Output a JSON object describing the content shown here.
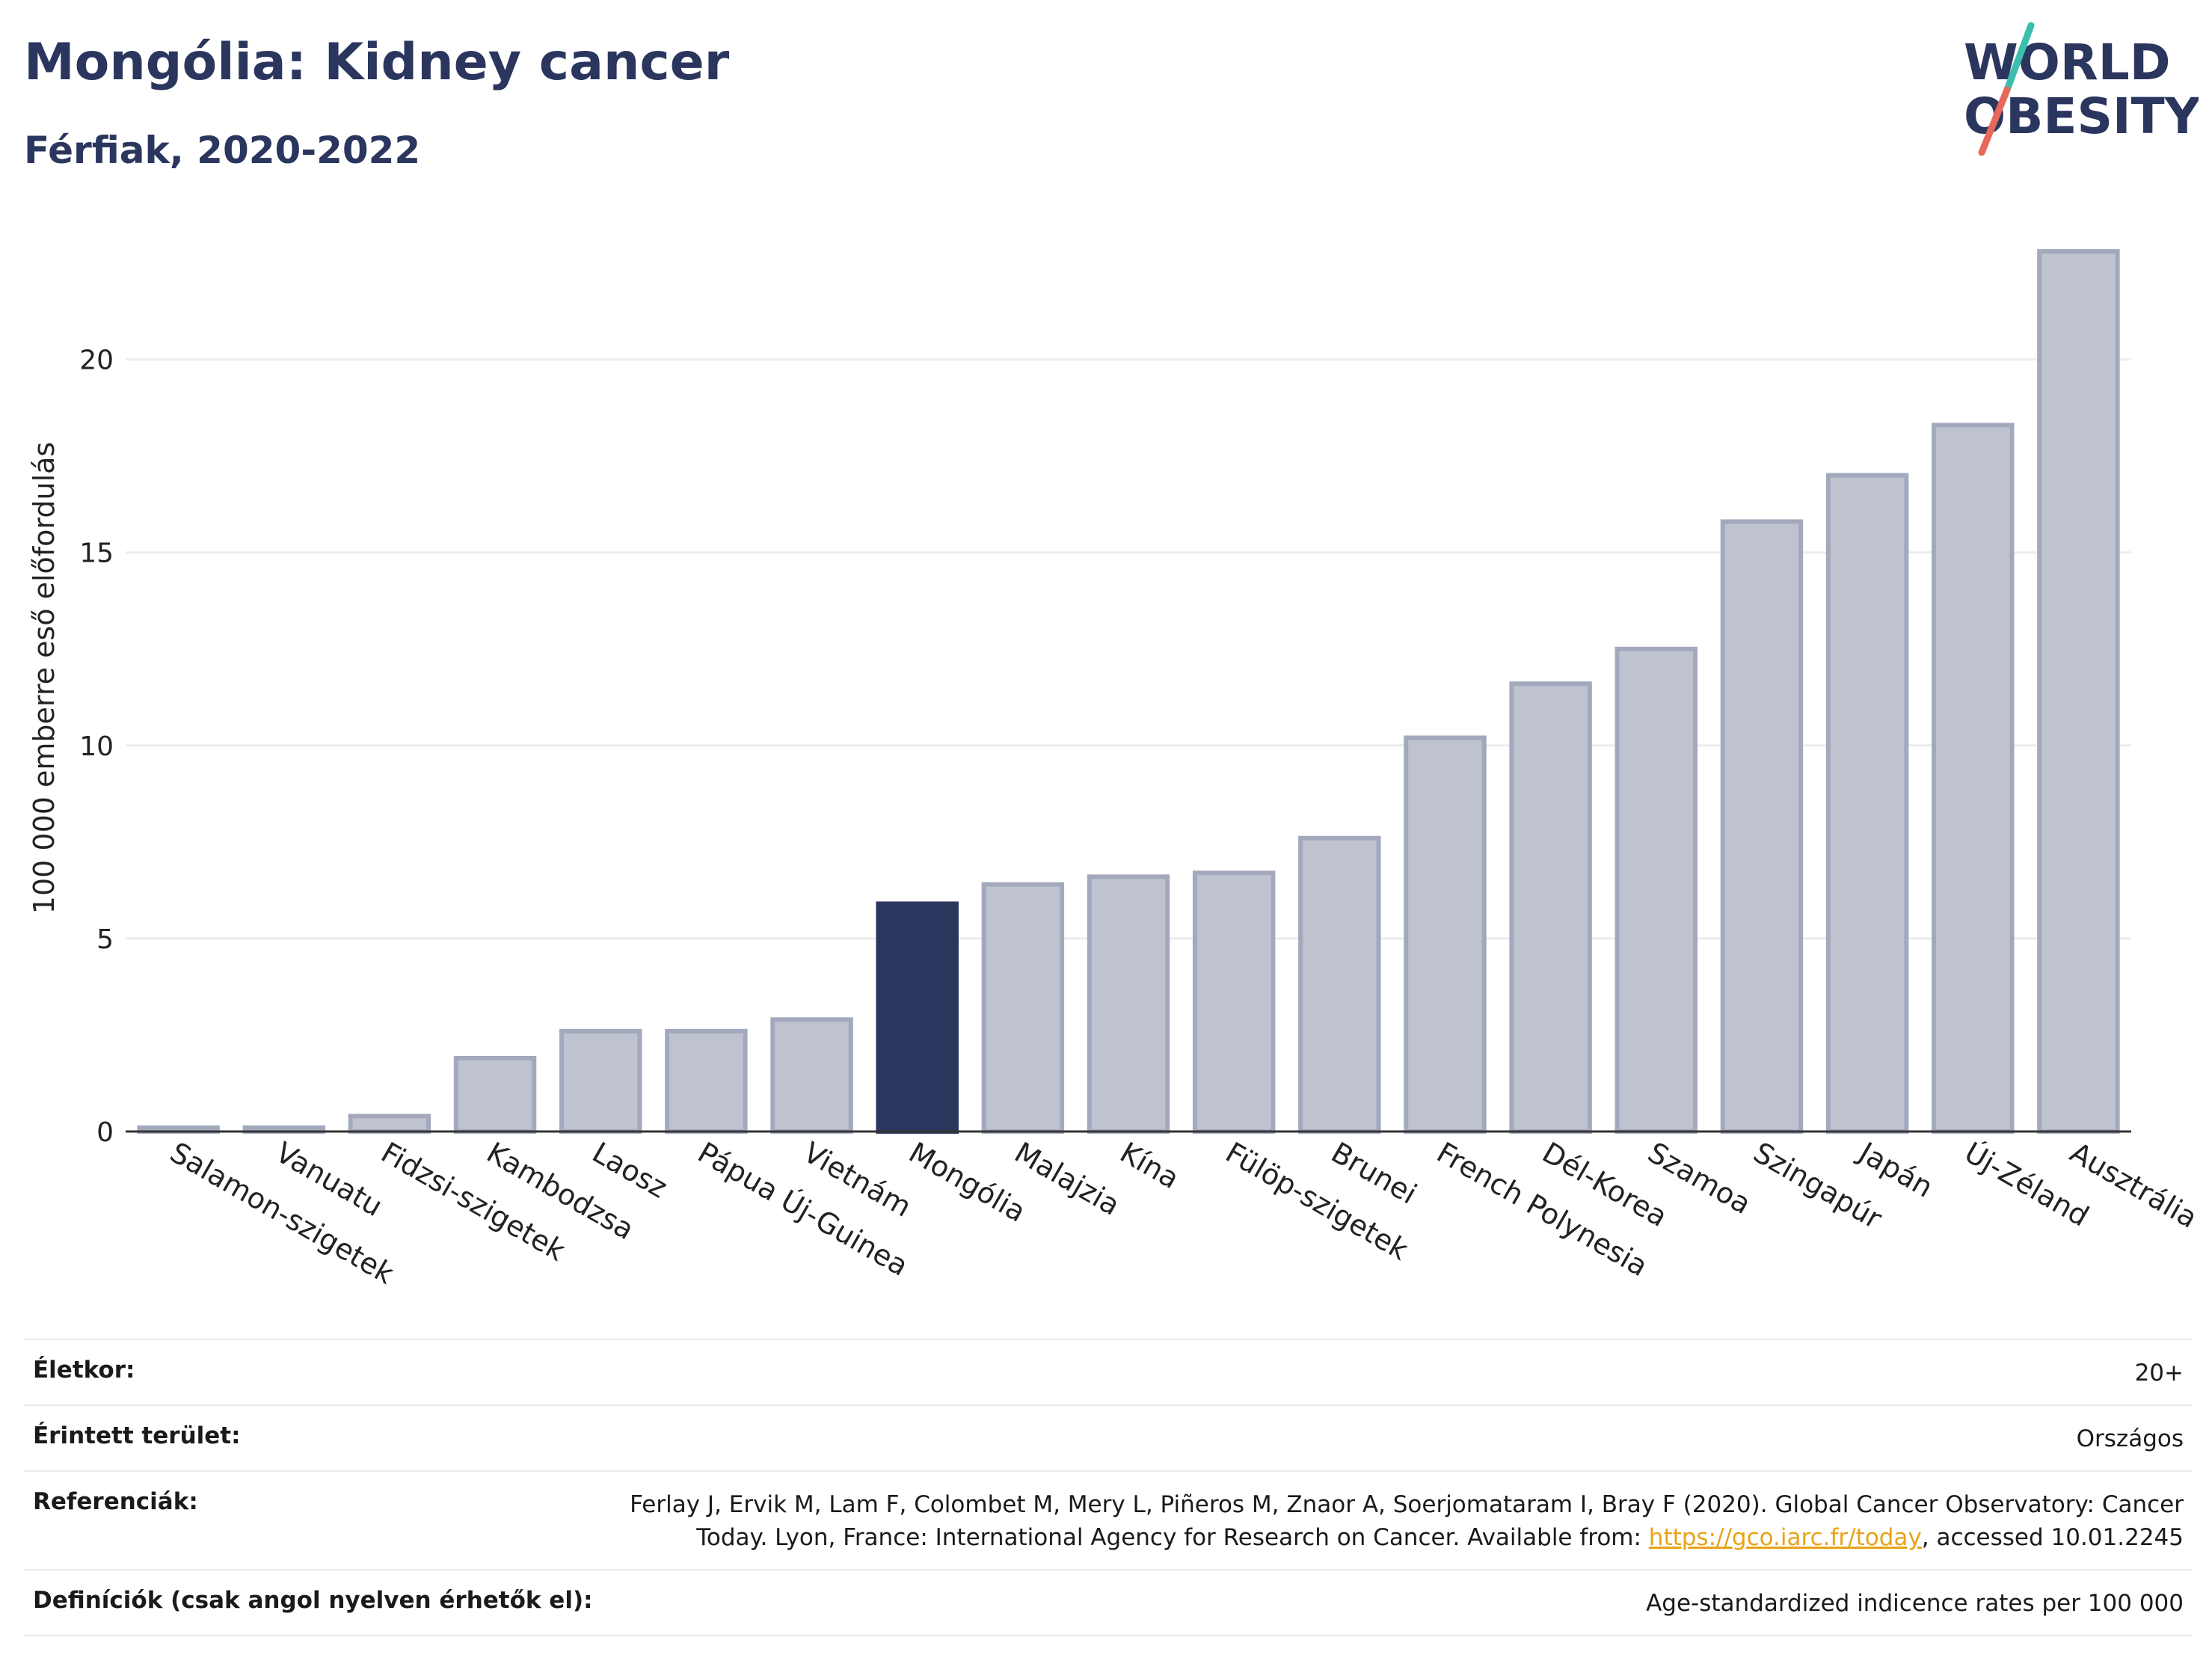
{
  "header": {
    "title": "Mongólia: Kidney cancer",
    "subtitle": "Férfiak, 2020-2022"
  },
  "logo": {
    "line1": "WORLD",
    "line2": "OBESITY",
    "slash_colors": [
      "#3bbfad",
      "#e8685a"
    ],
    "text_color": "#2b365f"
  },
  "colors": {
    "highlight_bar": "#2b365f",
    "default_bar": "#bfc3d0",
    "bar_border": "#a3a9bd",
    "gridline": "#ececf0",
    "axis": "#333333"
  },
  "chart_data": {
    "type": "bar",
    "title": "Mongólia: Kidney cancer",
    "subtitle": "Férfiak, 2020-2022",
    "ylabel": "100 000 emberre eső előfordulás",
    "xlabel": "",
    "ylim": [
      0,
      23.5
    ],
    "yticks": [
      0,
      5,
      10,
      15,
      20
    ],
    "grid": true,
    "highlight": "Mongólia",
    "categories": [
      "Salamon-szigetek",
      "Vanuatu",
      "Fidzsi-szigetek",
      "Kambodzsa",
      "Laosz",
      "Pápua Új-Guinea",
      "Vietnám",
      "Mongólia",
      "Malajzia",
      "Kína",
      "Fülöp-szigetek",
      "Brunei",
      "French Polynesia",
      "Dél-Korea",
      "Szamoa",
      "Szingapúr",
      "Japán",
      "Új-Zéland",
      "Ausztrália"
    ],
    "values": [
      0.1,
      0.1,
      0.4,
      1.9,
      2.6,
      2.6,
      2.9,
      5.9,
      6.4,
      6.6,
      6.7,
      7.6,
      10.2,
      11.6,
      12.5,
      15.8,
      17.0,
      18.3,
      22.8
    ]
  },
  "meta": {
    "age_label": "Életkor:",
    "age_value": "20+",
    "area_label": "Érintett terület:",
    "area_value": "Országos",
    "ref_label": "Referenciák:",
    "ref_line1": "Ferlay J, Ervik M, Lam F, Colombet M, Mery L, Piñeros M, Znaor A, Soerjomataram I, Bray F (2020). Global Cancer Observatory: Cancer",
    "ref_line2_pre": "Today. Lyon, France: International Agency for Research on Cancer. Available from: ",
    "ref_link": "https://gco.iarc.fr/today",
    "ref_line2_post": ", accessed 10.01.2245",
    "def_label": "Definíciók (csak angol nyelven érhetők el):",
    "def_value": "Age-standardized indicence rates per 100 000"
  }
}
